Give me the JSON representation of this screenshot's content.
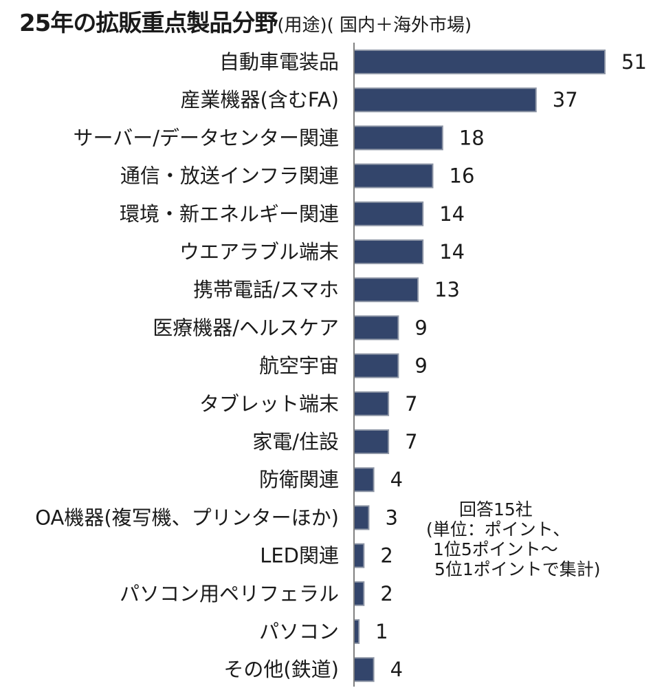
{
  "title": "25年の拡販重点製品分野",
  "subtitle": "(用途)( 国内＋海外市場)",
  "note": {
    "line1": "回答15社",
    "line2": "(単位：ポイント、",
    "line3": "1位5ポイント～",
    "line4": "5位1ポイントで集計)"
  },
  "colors": {
    "bar_fill": "#33456b",
    "bar_stroke": "#8e96a6",
    "axis": "#7f7f7f",
    "text": "#1a1a1a"
  },
  "chart_data": {
    "type": "bar",
    "orientation": "horizontal",
    "title": "25年の拡販重点製品分野",
    "categories": [
      "自動車電装品",
      "産業機器(含むFA)",
      "サーバー/データセンター関連",
      "通信・放送インフラ関連",
      "環境・新エネルギー関連",
      "ウエアラブル端末",
      "携帯電話/スマホ",
      "医療機器/ヘルスケア",
      "航空宇宙",
      "タブレット端末",
      "家電/住設",
      "防衛関連",
      "OA機器(複写機、プリンターほか)",
      "LED関連",
      "パソコン用ペリフェラル",
      "パソコン",
      "その他(鉄道)"
    ],
    "values": [
      51,
      37,
      18,
      16,
      14,
      14,
      13,
      9,
      9,
      7,
      7,
      4,
      3,
      2,
      2,
      1,
      4
    ],
    "xlim": [
      0,
      51
    ],
    "grid": false,
    "legend": "none"
  }
}
